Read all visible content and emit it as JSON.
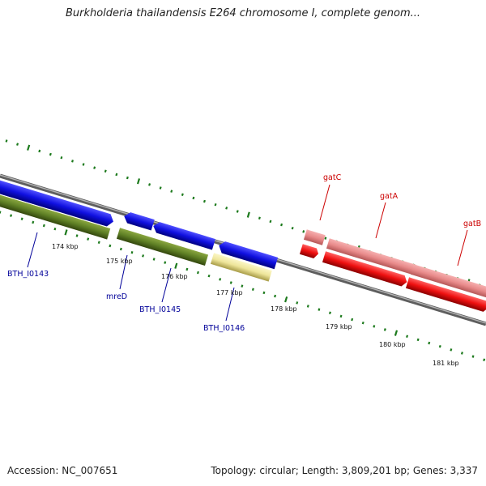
{
  "header": {
    "title": "Burkholderia thailandensis E264 chromosome I, complete genom..."
  },
  "footer": {
    "accession": "Accession: NC_007651",
    "topology": "Topology: circular; Length: 3,809,201 bp; Genes: 3,337"
  },
  "colors": {
    "backbone": "#8a8a8a",
    "tick": "#1d7a1d",
    "forward_cds": "#1010e0",
    "reverse_cds": "#5a7a1a",
    "pseudo": "#eee59a",
    "rrna_light": "#e88a8a",
    "rrna_dark": "#ee1010",
    "blue_label": "#000099",
    "red_label": "#cc0000"
  },
  "kbp_labels": [
    "174 kbp",
    "175 kbp",
    "176 kbp",
    "177 kbp",
    "178 kbp",
    "179 kbp",
    "180 kbp",
    "181 kbp"
  ],
  "gene_labels": {
    "bth_i0143": "BTH_I0143",
    "mred": "mreD",
    "bth_i0145": "BTH_I0145",
    "bth_i0146": "BTH_I0146",
    "gatc": "gatC",
    "gata": "gatA",
    "gatb": "gatB"
  }
}
